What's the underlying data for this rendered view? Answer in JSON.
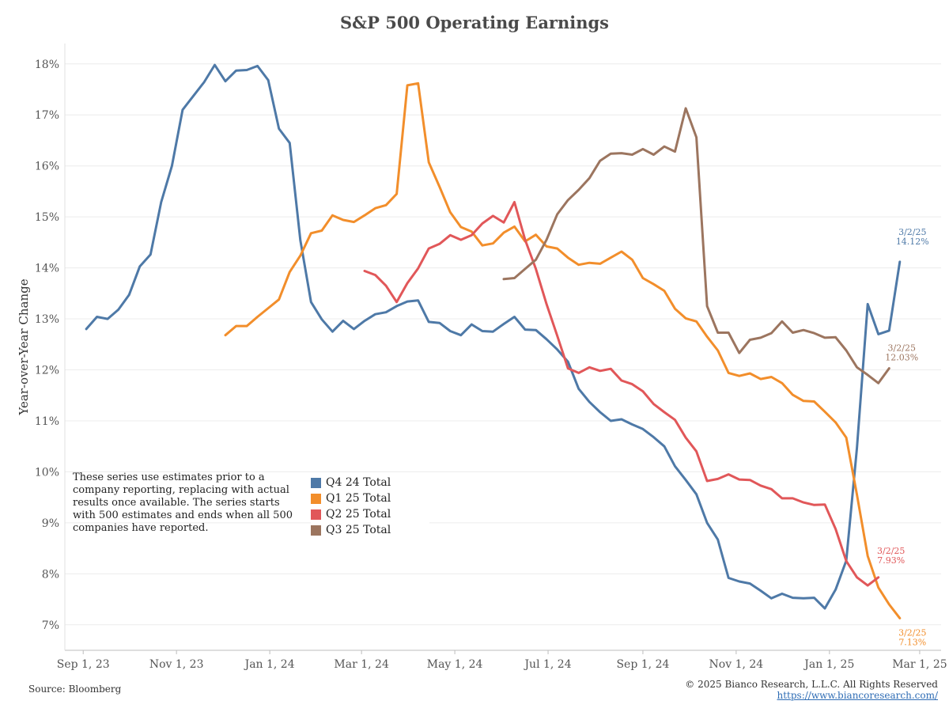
{
  "title": "S&P 500 Operating Earnings",
  "note": "These series use estimates prior to a company reporting, replacing with actual results once available. The series starts with 500 estimates and ends when all 500 companies have reported.",
  "source": "Source: Bloomberg",
  "copyright": "© 2025 Bianco Research, L.L.C. All Rights Reserved",
  "url": "https://www.biancoresearch.com/",
  "chart_data": {
    "type": "line",
    "title": "S&P 500 Operating Earnings",
    "xlabel": "",
    "ylabel": "Year-over-Year Change",
    "x_tick_labels": [
      "Sep 1, 23",
      "Nov 1, 23",
      "Jan 1, 24",
      "Mar 1, 24",
      "May 1, 24",
      "Jul 1, 24",
      "Sep 1, 24",
      "Nov 1, 24",
      "Jan 1, 25",
      "Mar 1, 25"
    ],
    "x_tick_dates": [
      "2023-09-01",
      "2023-11-01",
      "2024-01-01",
      "2024-03-01",
      "2024-05-01",
      "2024-07-01",
      "2024-09-01",
      "2024-11-01",
      "2025-01-01",
      "2025-03-01"
    ],
    "xlim": [
      "2023-08-20",
      "2025-03-15"
    ],
    "y_tick_labels": [
      "7%",
      "8%",
      "9%",
      "10%",
      "11%",
      "12%",
      "13%",
      "14%",
      "15%",
      "16%",
      "17%",
      "18%"
    ],
    "ylim": [
      6.5,
      18.4
    ],
    "grid": "horizontal",
    "legend_position": "bottom-left",
    "series": [
      {
        "name": "Q4 24 Total",
        "color": "#4e79a7",
        "end_label_date": "3/2/25",
        "end_label_value": "14.12%",
        "points": [
          [
            "2023-09-03",
            12.8
          ],
          [
            "2023-09-10",
            13.04
          ],
          [
            "2023-09-17",
            13.0
          ],
          [
            "2023-09-24",
            13.18
          ],
          [
            "2023-10-01",
            13.47
          ],
          [
            "2023-10-08",
            14.03
          ],
          [
            "2023-10-15",
            14.26
          ],
          [
            "2023-10-22",
            15.29
          ],
          [
            "2023-10-29",
            16.0
          ],
          [
            "2023-11-05",
            17.1
          ],
          [
            "2023-11-12",
            17.37
          ],
          [
            "2023-11-19",
            17.64
          ],
          [
            "2023-11-26",
            17.98
          ],
          [
            "2023-12-03",
            17.66
          ],
          [
            "2023-12-10",
            17.87
          ],
          [
            "2023-12-17",
            17.88
          ],
          [
            "2023-12-24",
            17.96
          ],
          [
            "2023-12-31",
            17.68
          ],
          [
            "2024-01-07",
            16.73
          ],
          [
            "2024-01-14",
            16.45
          ],
          [
            "2024-01-21",
            14.54
          ],
          [
            "2024-01-28",
            13.33
          ],
          [
            "2024-02-04",
            12.99
          ],
          [
            "2024-02-11",
            12.75
          ],
          [
            "2024-02-18",
            12.96
          ],
          [
            "2024-02-25",
            12.8
          ],
          [
            "2024-03-03",
            12.96
          ],
          [
            "2024-03-10",
            13.09
          ],
          [
            "2024-03-17",
            13.13
          ],
          [
            "2024-03-24",
            13.25
          ],
          [
            "2024-03-31",
            13.34
          ],
          [
            "2024-04-07",
            13.36
          ],
          [
            "2024-04-14",
            12.94
          ],
          [
            "2024-04-21",
            12.92
          ],
          [
            "2024-04-28",
            12.76
          ],
          [
            "2024-05-05",
            12.68
          ],
          [
            "2024-05-12",
            12.89
          ],
          [
            "2024-05-19",
            12.76
          ],
          [
            "2024-05-26",
            12.75
          ],
          [
            "2024-06-02",
            12.9
          ],
          [
            "2024-06-09",
            13.04
          ],
          [
            "2024-06-16",
            12.79
          ],
          [
            "2024-06-23",
            12.78
          ],
          [
            "2024-06-30",
            12.6
          ],
          [
            "2024-07-07",
            12.4
          ],
          [
            "2024-07-14",
            12.16
          ],
          [
            "2024-07-21",
            11.63
          ],
          [
            "2024-07-28",
            11.37
          ],
          [
            "2024-08-04",
            11.17
          ],
          [
            "2024-08-11",
            11.0
          ],
          [
            "2024-08-18",
            11.03
          ],
          [
            "2024-08-25",
            10.93
          ],
          [
            "2024-09-01",
            10.84
          ],
          [
            "2024-09-08",
            10.68
          ],
          [
            "2024-09-15",
            10.5
          ],
          [
            "2024-09-22",
            10.11
          ],
          [
            "2024-09-29",
            9.84
          ],
          [
            "2024-10-06",
            9.56
          ],
          [
            "2024-10-13",
            9.0
          ],
          [
            "2024-10-20",
            8.67
          ],
          [
            "2024-10-27",
            7.92
          ],
          [
            "2024-11-03",
            7.85
          ],
          [
            "2024-11-10",
            7.81
          ],
          [
            "2024-11-17",
            7.67
          ],
          [
            "2024-11-24",
            7.52
          ],
          [
            "2024-12-01",
            7.61
          ],
          [
            "2024-12-08",
            7.53
          ],
          [
            "2024-12-15",
            7.52
          ],
          [
            "2024-12-22",
            7.53
          ],
          [
            "2024-12-29",
            7.32
          ],
          [
            "2025-01-05",
            7.69
          ],
          [
            "2025-01-12",
            8.26
          ],
          [
            "2025-01-19",
            10.47
          ],
          [
            "2025-01-26",
            13.29
          ],
          [
            "2025-02-02",
            12.7
          ],
          [
            "2025-02-09",
            12.77
          ],
          [
            "2025-02-16",
            14.12
          ]
        ]
      },
      {
        "name": "Q1 25 Total",
        "color": "#f28e2b",
        "end_label_date": "3/2/25",
        "end_label_value": "7.13%",
        "points": [
          [
            "2023-12-03",
            12.68
          ],
          [
            "2023-12-10",
            12.86
          ],
          [
            "2023-12-17",
            12.86
          ],
          [
            "2023-12-24",
            13.04
          ],
          [
            "2023-12-31",
            13.21
          ],
          [
            "2024-01-07",
            13.38
          ],
          [
            "2024-01-14",
            13.92
          ],
          [
            "2024-01-21",
            14.24
          ],
          [
            "2024-01-28",
            14.68
          ],
          [
            "2024-02-04",
            14.73
          ],
          [
            "2024-02-11",
            15.03
          ],
          [
            "2024-02-18",
            14.94
          ],
          [
            "2024-02-25",
            14.9
          ],
          [
            "2024-03-03",
            15.03
          ],
          [
            "2024-03-10",
            15.17
          ],
          [
            "2024-03-17",
            15.23
          ],
          [
            "2024-03-24",
            15.45
          ],
          [
            "2024-03-31",
            17.58
          ],
          [
            "2024-04-07",
            17.62
          ],
          [
            "2024-04-14",
            16.07
          ],
          [
            "2024-04-21",
            15.59
          ],
          [
            "2024-04-28",
            15.09
          ],
          [
            "2024-05-05",
            14.8
          ],
          [
            "2024-05-12",
            14.71
          ],
          [
            "2024-05-19",
            14.44
          ],
          [
            "2024-05-26",
            14.48
          ],
          [
            "2024-06-02",
            14.69
          ],
          [
            "2024-06-09",
            14.81
          ],
          [
            "2024-06-16",
            14.52
          ],
          [
            "2024-06-23",
            14.65
          ],
          [
            "2024-06-30",
            14.42
          ],
          [
            "2024-07-07",
            14.38
          ],
          [
            "2024-07-14",
            14.2
          ],
          [
            "2024-07-21",
            14.06
          ],
          [
            "2024-07-28",
            14.1
          ],
          [
            "2024-08-04",
            14.08
          ],
          [
            "2024-08-11",
            14.2
          ],
          [
            "2024-08-18",
            14.32
          ],
          [
            "2024-08-25",
            14.16
          ],
          [
            "2024-09-01",
            13.8
          ],
          [
            "2024-09-08",
            13.68
          ],
          [
            "2024-09-15",
            13.55
          ],
          [
            "2024-09-22",
            13.2
          ],
          [
            "2024-09-29",
            13.01
          ],
          [
            "2024-10-06",
            12.95
          ],
          [
            "2024-10-13",
            12.65
          ],
          [
            "2024-10-20",
            12.38
          ],
          [
            "2024-10-27",
            11.94
          ],
          [
            "2024-11-03",
            11.88
          ],
          [
            "2024-11-10",
            11.93
          ],
          [
            "2024-11-17",
            11.82
          ],
          [
            "2024-11-24",
            11.86
          ],
          [
            "2024-12-01",
            11.74
          ],
          [
            "2024-12-08",
            11.51
          ],
          [
            "2024-12-15",
            11.39
          ],
          [
            "2024-12-22",
            11.38
          ],
          [
            "2024-12-29",
            11.18
          ],
          [
            "2025-01-05",
            10.97
          ],
          [
            "2025-01-12",
            10.67
          ],
          [
            "2025-01-19",
            9.55
          ],
          [
            "2025-01-26",
            8.35
          ],
          [
            "2025-02-02",
            7.73
          ],
          [
            "2025-02-09",
            7.4
          ],
          [
            "2025-02-16",
            7.13
          ]
        ]
      },
      {
        "name": "Q2 25 Total",
        "color": "#e15759",
        "end_label_date": "3/2/25",
        "end_label_value": "7.93%",
        "points": [
          [
            "2024-03-03",
            13.94
          ],
          [
            "2024-03-10",
            13.86
          ],
          [
            "2024-03-17",
            13.65
          ],
          [
            "2024-03-24",
            13.33
          ],
          [
            "2024-03-31",
            13.7
          ],
          [
            "2024-04-07",
            13.99
          ],
          [
            "2024-04-14",
            14.38
          ],
          [
            "2024-04-21",
            14.47
          ],
          [
            "2024-04-28",
            14.64
          ],
          [
            "2024-05-05",
            14.55
          ],
          [
            "2024-05-12",
            14.64
          ],
          [
            "2024-05-19",
            14.87
          ],
          [
            "2024-05-26",
            15.02
          ],
          [
            "2024-06-02",
            14.89
          ],
          [
            "2024-06-09",
            15.29
          ],
          [
            "2024-06-16",
            14.55
          ],
          [
            "2024-06-23",
            13.98
          ],
          [
            "2024-06-30",
            13.29
          ],
          [
            "2024-07-07",
            12.67
          ],
          [
            "2024-07-14",
            12.03
          ],
          [
            "2024-07-21",
            11.94
          ],
          [
            "2024-07-28",
            12.05
          ],
          [
            "2024-08-04",
            11.98
          ],
          [
            "2024-08-11",
            12.02
          ],
          [
            "2024-08-18",
            11.79
          ],
          [
            "2024-08-25",
            11.72
          ],
          [
            "2024-09-01",
            11.58
          ],
          [
            "2024-09-08",
            11.33
          ],
          [
            "2024-09-15",
            11.17
          ],
          [
            "2024-09-22",
            11.02
          ],
          [
            "2024-09-29",
            10.67
          ],
          [
            "2024-10-06",
            10.4
          ],
          [
            "2024-10-13",
            9.82
          ],
          [
            "2024-10-20",
            9.86
          ],
          [
            "2024-10-27",
            9.95
          ],
          [
            "2024-11-03",
            9.85
          ],
          [
            "2024-11-10",
            9.84
          ],
          [
            "2024-11-17",
            9.73
          ],
          [
            "2024-11-24",
            9.66
          ],
          [
            "2024-12-01",
            9.48
          ],
          [
            "2024-12-08",
            9.48
          ],
          [
            "2024-12-15",
            9.4
          ],
          [
            "2024-12-22",
            9.35
          ],
          [
            "2024-12-29",
            9.36
          ],
          [
            "2025-01-05",
            8.88
          ],
          [
            "2025-01-12",
            8.25
          ],
          [
            "2025-01-19",
            7.93
          ],
          [
            "2025-01-26",
            7.77
          ],
          [
            "2025-02-02",
            7.93
          ]
        ]
      },
      {
        "name": "Q3 25 Total",
        "color": "#9c755f",
        "end_label_date": "3/2/25",
        "end_label_value": "12.03%",
        "points": [
          [
            "2024-06-02",
            13.78
          ],
          [
            "2024-06-09",
            13.8
          ],
          [
            "2024-06-16",
            13.98
          ],
          [
            "2024-06-23",
            14.16
          ],
          [
            "2024-06-30",
            14.55
          ],
          [
            "2024-07-07",
            15.05
          ],
          [
            "2024-07-14",
            15.33
          ],
          [
            "2024-07-21",
            15.53
          ],
          [
            "2024-07-28",
            15.76
          ],
          [
            "2024-08-04",
            16.1
          ],
          [
            "2024-08-11",
            16.24
          ],
          [
            "2024-08-18",
            16.25
          ],
          [
            "2024-08-25",
            16.22
          ],
          [
            "2024-09-01",
            16.33
          ],
          [
            "2024-09-08",
            16.22
          ],
          [
            "2024-09-15",
            16.38
          ],
          [
            "2024-09-22",
            16.28
          ],
          [
            "2024-09-29",
            17.13
          ],
          [
            "2024-10-06",
            16.56
          ],
          [
            "2024-10-13",
            13.25
          ],
          [
            "2024-10-20",
            12.73
          ],
          [
            "2024-10-27",
            12.73
          ],
          [
            "2024-11-03",
            12.33
          ],
          [
            "2024-11-10",
            12.59
          ],
          [
            "2024-11-17",
            12.63
          ],
          [
            "2024-11-24",
            12.72
          ],
          [
            "2024-12-01",
            12.95
          ],
          [
            "2024-12-08",
            12.73
          ],
          [
            "2024-12-15",
            12.78
          ],
          [
            "2024-12-22",
            12.72
          ],
          [
            "2024-12-29",
            12.63
          ],
          [
            "2025-01-05",
            12.64
          ],
          [
            "2025-01-12",
            12.38
          ],
          [
            "2025-01-19",
            12.05
          ],
          [
            "2025-01-26",
            11.9
          ],
          [
            "2025-02-02",
            11.74
          ],
          [
            "2025-02-09",
            12.03
          ]
        ]
      }
    ]
  }
}
